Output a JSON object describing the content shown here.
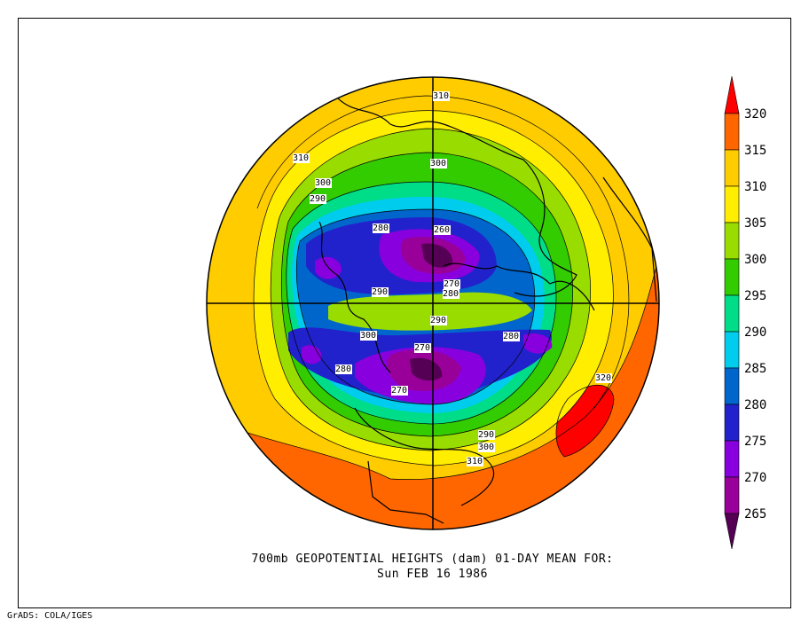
{
  "credit": "GrADS: COLA/IGES",
  "chart_data": {
    "type": "heatmap",
    "title": "700mb GEOPOTENTIAL HEIGHTS (dam)   01-DAY MEAN FOR:",
    "subtitle": "Sun FEB 16 1986",
    "colorbar": {
      "ticks": [
        320,
        315,
        310,
        305,
        300,
        295,
        290,
        285,
        280,
        275,
        270,
        265
      ],
      "colors": [
        "#ff0000",
        "#ff6600",
        "#ffcc00",
        "#ffee00",
        "#99dd00",
        "#33cc00",
        "#00dd88",
        "#00ccee",
        "#0066cc",
        "#2222cc",
        "#8800dd",
        "#990099",
        "#550055"
      ]
    },
    "contour_labels": [
      {
        "value": "310"
      },
      {
        "value": "310"
      },
      {
        "value": "300"
      },
      {
        "value": "300"
      },
      {
        "value": "290"
      },
      {
        "value": "280"
      },
      {
        "value": "260"
      },
      {
        "value": "270"
      },
      {
        "value": "280"
      },
      {
        "value": "290"
      },
      {
        "value": "290"
      },
      {
        "value": "300"
      },
      {
        "value": "270"
      },
      {
        "value": "280"
      },
      {
        "value": "280"
      },
      {
        "value": "270"
      },
      {
        "value": "320"
      },
      {
        "value": "290"
      },
      {
        "value": "300"
      },
      {
        "value": "310"
      }
    ]
  }
}
